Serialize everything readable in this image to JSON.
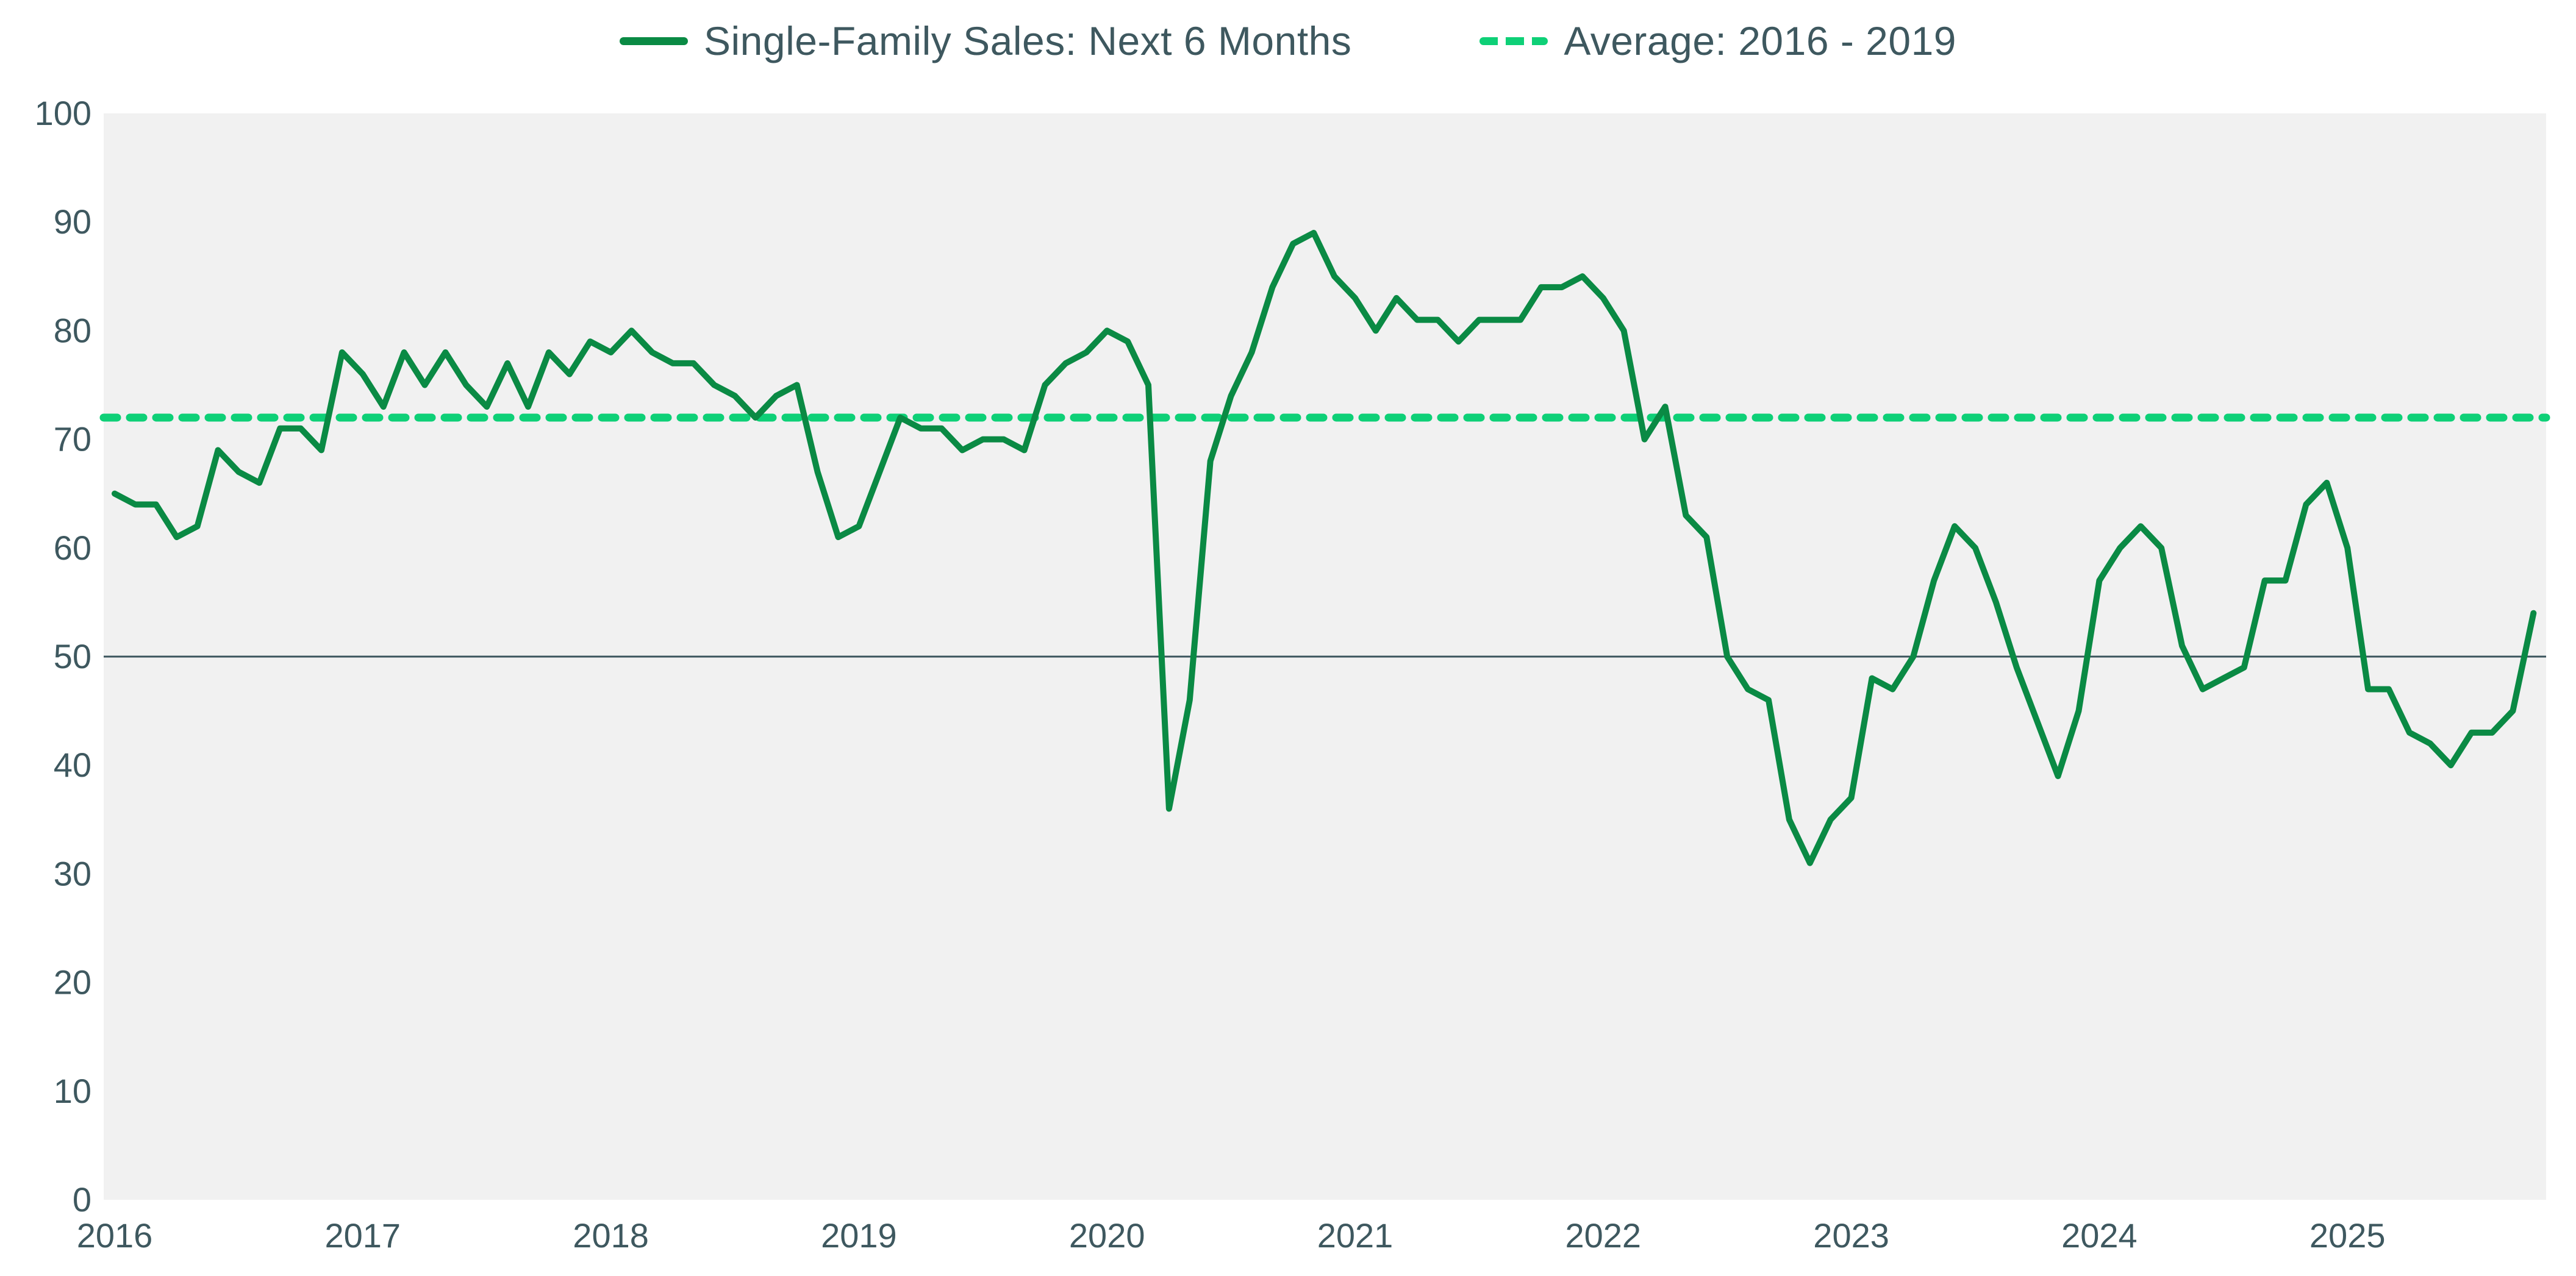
{
  "colors": {
    "series": "#0A8A44",
    "average": "#0ED077",
    "plot_background": "#F1F1F1",
    "axis_text": "#3E585F",
    "reference_line": "#3A545C"
  },
  "legend": {
    "series_label": "Single-Family Sales: Next 6 Months",
    "average_label": "Average: 2016 - 2019"
  },
  "chart_data": {
    "type": "line",
    "title": "",
    "xlabel": "",
    "ylabel": "",
    "frequency": "monthly",
    "start": "2016-01",
    "end": "2025-10",
    "ylim": [
      0,
      100
    ],
    "y_ticks": [
      0,
      10,
      20,
      30,
      40,
      50,
      60,
      70,
      80,
      90,
      100
    ],
    "x_tick_labels": [
      "2016",
      "2017",
      "2018",
      "2019",
      "2020",
      "2021",
      "2022",
      "2023",
      "2024",
      "2025"
    ],
    "grid": "off",
    "legend_position": "top-center",
    "reference_line_y": 50,
    "average_line": {
      "label": "Average: 2016 - 2019",
      "value": 72,
      "style": "dashed"
    },
    "series": [
      {
        "name": "Single-Family Sales: Next 6 Months",
        "style": "solid",
        "values": [
          65,
          64,
          64,
          61,
          62,
          69,
          67,
          66,
          71,
          71,
          69,
          78,
          76,
          73,
          78,
          75,
          78,
          75,
          73,
          77,
          73,
          78,
          76,
          79,
          78,
          80,
          78,
          77,
          77,
          75,
          74,
          72,
          74,
          75,
          67,
          61,
          62,
          67,
          72,
          71,
          71,
          69,
          70,
          70,
          69,
          75,
          77,
          78,
          80,
          79,
          75,
          36,
          46,
          68,
          74,
          78,
          84,
          88,
          89,
          85,
          83,
          80,
          83,
          81,
          81,
          79,
          81,
          81,
          81,
          84,
          84,
          85,
          83,
          80,
          70,
          73,
          63,
          61,
          50,
          47,
          46,
          35,
          31,
          35,
          37,
          48,
          47,
          50,
          57,
          62,
          60,
          55,
          49,
          44,
          39,
          45,
          57,
          60,
          62,
          60,
          51,
          47,
          48,
          49,
          57,
          57,
          64,
          66,
          60,
          47,
          47,
          43,
          42,
          40,
          43,
          43,
          45,
          54
        ]
      }
    ]
  }
}
